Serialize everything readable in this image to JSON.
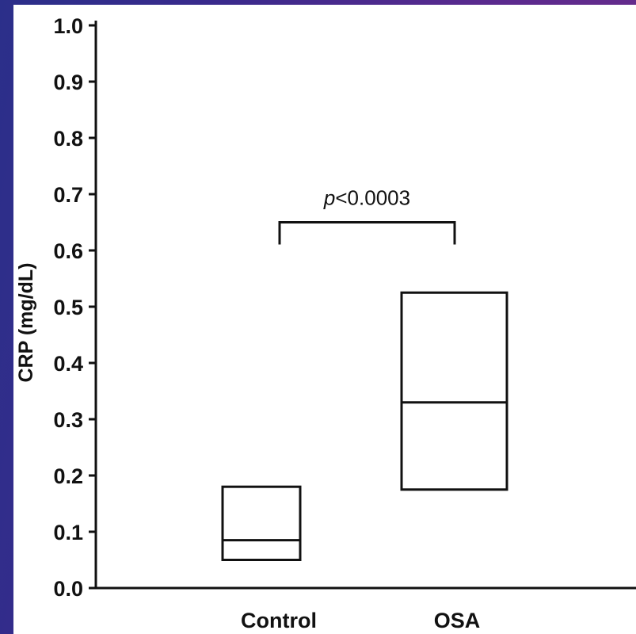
{
  "chart_data": {
    "type": "box",
    "ylabel": "CRP (mg/dL)",
    "xlabel": "",
    "ylim": [
      0.0,
      1.0
    ],
    "yticks": [
      "0.0",
      "0.1",
      "0.2",
      "0.3",
      "0.4",
      "0.5",
      "0.6",
      "0.7",
      "0.8",
      "0.9",
      "1.0"
    ],
    "categories": [
      "Control",
      "OSA"
    ],
    "boxes": [
      {
        "category": "Control",
        "q1": 0.05,
        "median": 0.085,
        "q3": 0.18
      },
      {
        "category": "OSA",
        "q1": 0.175,
        "median": 0.33,
        "q3": 0.525
      }
    ],
    "annotation": {
      "text_italic": "p",
      "text_rest": "<0.0003",
      "between": [
        "Control",
        "OSA"
      ],
      "bracket_y": 0.65
    },
    "grid": false,
    "legend": "none"
  },
  "colors": {
    "background_left": "#2b2f8a",
    "background_right": "#6b2c8a",
    "panel": "#ffffff",
    "ink": "#111111"
  }
}
